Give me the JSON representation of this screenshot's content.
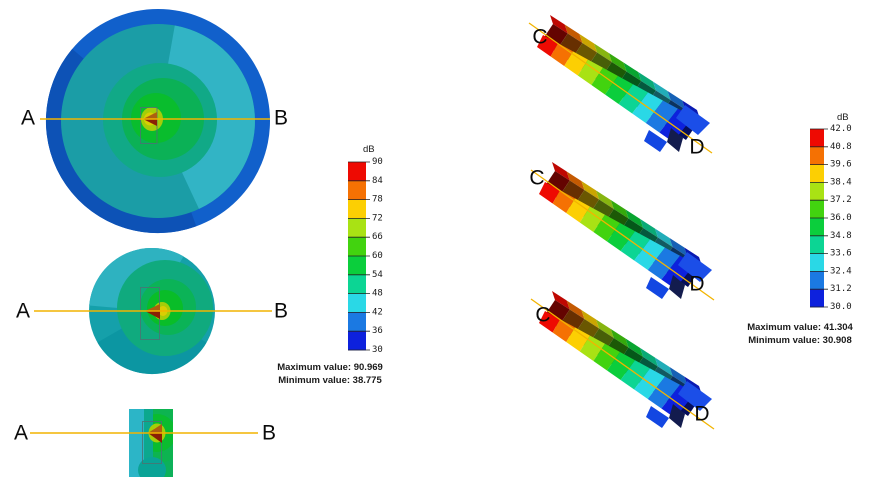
{
  "page": {
    "background": "#ffffff"
  },
  "accent": {
    "cut_line_color": "#f2b400"
  },
  "left_panel": {
    "views": [
      {
        "name": "large-sphere-section",
        "start_label": "A",
        "end_label": "B"
      },
      {
        "name": "medium-sphere-section",
        "start_label": "A",
        "end_label": "B"
      },
      {
        "name": "plate-section",
        "start_label": "A",
        "end_label": "B"
      }
    ],
    "colorbar": {
      "unit": "dB",
      "ticks": [
        "90",
        "84",
        "78",
        "72",
        "66",
        "60",
        "54",
        "48",
        "42",
        "36",
        "30"
      ],
      "colors": [
        "#ee0a02",
        "#f57103",
        "#fccf03",
        "#a9e214",
        "#42d30f",
        "#0bce3c",
        "#0cd594",
        "#2ad8e6",
        "#1b79e2",
        "#0d21dd"
      ]
    },
    "max_text": "Maximum value: 90.969",
    "min_text": "Minimum value: 38.775"
  },
  "right_panel": {
    "views": [
      {
        "name": "beam-section-top",
        "start_label": "C",
        "end_label": "D"
      },
      {
        "name": "beam-section-middle",
        "start_label": "C",
        "end_label": "D"
      },
      {
        "name": "beam-section-bottom",
        "start_label": "C",
        "end_label": "D"
      }
    ],
    "colorbar": {
      "unit": "dB",
      "ticks": [
        "42.0",
        "40.8",
        "39.6",
        "38.4",
        "37.2",
        "36.0",
        "34.8",
        "33.6",
        "32.4",
        "31.2",
        "30.0"
      ],
      "colors": [
        "#ee0a02",
        "#f57103",
        "#fccf03",
        "#a9e214",
        "#42d30f",
        "#0bce3c",
        "#0cd594",
        "#2ad8e6",
        "#1b79e2",
        "#0d21dd"
      ]
    },
    "max_text": "Maximum value: 41.304",
    "min_text": "Minimum value: 30.908"
  },
  "chart_data": [
    {
      "type": "heatmap",
      "title": "",
      "unit": "dB",
      "legend_position": "right",
      "scale_ticks": [
        90,
        84,
        78,
        72,
        66,
        60,
        54,
        48,
        42,
        36,
        30
      ],
      "scale_range": [
        30,
        90
      ],
      "palette_top_to_bottom": [
        "#ee0a02",
        "#f57103",
        "#fccf03",
        "#a9e214",
        "#42d30f",
        "#0bce3c",
        "#0cd594",
        "#2ad8e6",
        "#1b79e2",
        "#0d21dd"
      ],
      "max_value": 90.969,
      "min_value": 38.775,
      "section_endpoints": [
        "A",
        "B"
      ],
      "num_views": 3
    },
    {
      "type": "heatmap",
      "title": "",
      "unit": "dB",
      "legend_position": "right",
      "scale_ticks": [
        42.0,
        40.8,
        39.6,
        38.4,
        37.2,
        36.0,
        34.8,
        33.6,
        32.4,
        31.2,
        30.0
      ],
      "scale_range": [
        30,
        42
      ],
      "palette_top_to_bottom": [
        "#ee0a02",
        "#f57103",
        "#fccf03",
        "#a9e214",
        "#42d30f",
        "#0bce3c",
        "#0cd594",
        "#2ad8e6",
        "#1b79e2",
        "#0d21dd"
      ],
      "max_value": 41.304,
      "min_value": 30.908,
      "section_endpoints": [
        "C",
        "D"
      ],
      "num_views": 3
    }
  ]
}
